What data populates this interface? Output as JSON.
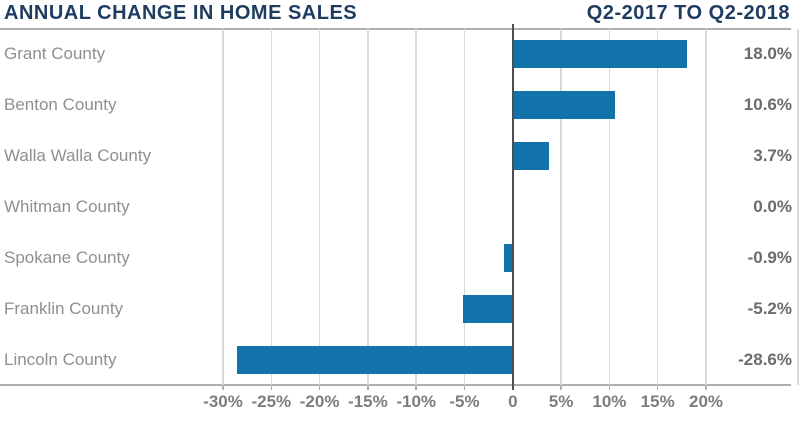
{
  "header": {
    "title": "ANNUAL CHANGE IN HOME SALES",
    "subtitle": "Q2-2017 TO Q2-2018"
  },
  "chart_data": {
    "type": "bar",
    "orientation": "horizontal",
    "title": "ANNUAL CHANGE IN HOME SALES",
    "subtitle": "Q2-2017 TO Q2-2018",
    "categories": [
      "Grant County",
      "Benton County",
      "Walla Walla County",
      "Whitman County",
      "Spokane County",
      "Franklin County",
      "Lincoln County"
    ],
    "values": [
      18.0,
      10.6,
      3.7,
      0.0,
      -0.9,
      -5.2,
      -28.6
    ],
    "value_labels": [
      "18.0%",
      "10.6%",
      "3.7%",
      "0.0%",
      "-0.9%",
      "-5.2%",
      "-28.6%"
    ],
    "x_ticks": [
      -30,
      -25,
      -20,
      -15,
      -10,
      -5,
      0,
      5,
      10,
      15,
      20
    ],
    "x_tick_labels": [
      "-30%",
      "-25%",
      "-20%",
      "-15%",
      "-10%",
      "-5%",
      "0",
      "5%",
      "10%",
      "15%",
      "20%"
    ],
    "x_range": [
      -30,
      20
    ],
    "grid": true,
    "legend": false
  },
  "colors": {
    "bar": "#1272aa",
    "title_navy": "#1e3c5f",
    "category_label": "#8f8f8f",
    "value_label": "#6b6b6b",
    "tick_label": "#7d7d7d",
    "gridline": "#d9d9d9",
    "axis_border": "#b0b0b0",
    "zero_line": "#4f4f4f"
  }
}
